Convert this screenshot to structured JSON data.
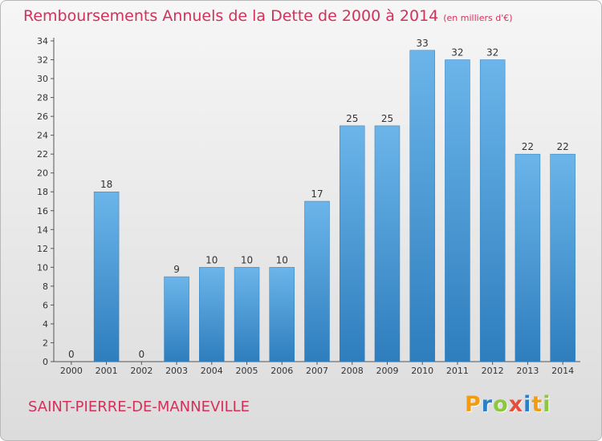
{
  "title": "Remboursements Annuels de la Dette de 2000 à 2014",
  "unit_note": "(en milliers d'€)",
  "commune": "SAINT-PIERRE-DE-MANNEVILLE",
  "brand": {
    "letters": [
      "P",
      "r",
      "o",
      "x",
      "i",
      "t",
      "i"
    ],
    "colors": [
      "#f39c12",
      "#2a7fc8",
      "#8dc63f",
      "#e84c3d",
      "#2a7fc8",
      "#f39c12",
      "#8dc63f"
    ]
  },
  "colors": {
    "bar": "#4e9fdc",
    "bar_dark": "#2e7dbd",
    "bar_light": "#6bb5ea",
    "title": "#d2315a"
  },
  "chart_data": {
    "type": "bar",
    "categories": [
      "2000",
      "2001",
      "2002",
      "2003",
      "2004",
      "2005",
      "2006",
      "2007",
      "2008",
      "2009",
      "2010",
      "2011",
      "2012",
      "2013",
      "2014"
    ],
    "values": [
      0,
      18,
      0,
      9,
      10,
      10,
      10,
      17,
      25,
      25,
      33,
      32,
      32,
      22,
      22
    ],
    "data_labels": [
      "0",
      "18",
      "0",
      "9",
      "10",
      "10",
      "10",
      "17",
      "25",
      "25",
      "33",
      "32",
      "32",
      "22",
      "22"
    ],
    "y_ticks": [
      0,
      2,
      4,
      6,
      8,
      10,
      12,
      14,
      16,
      18,
      20,
      22,
      24,
      26,
      28,
      30,
      32,
      34
    ],
    "ylim": [
      0,
      34
    ],
    "grid": false,
    "title": "Remboursements Annuels de la Dette de 2000 à 2014",
    "xlabel": "",
    "ylabel": ""
  }
}
